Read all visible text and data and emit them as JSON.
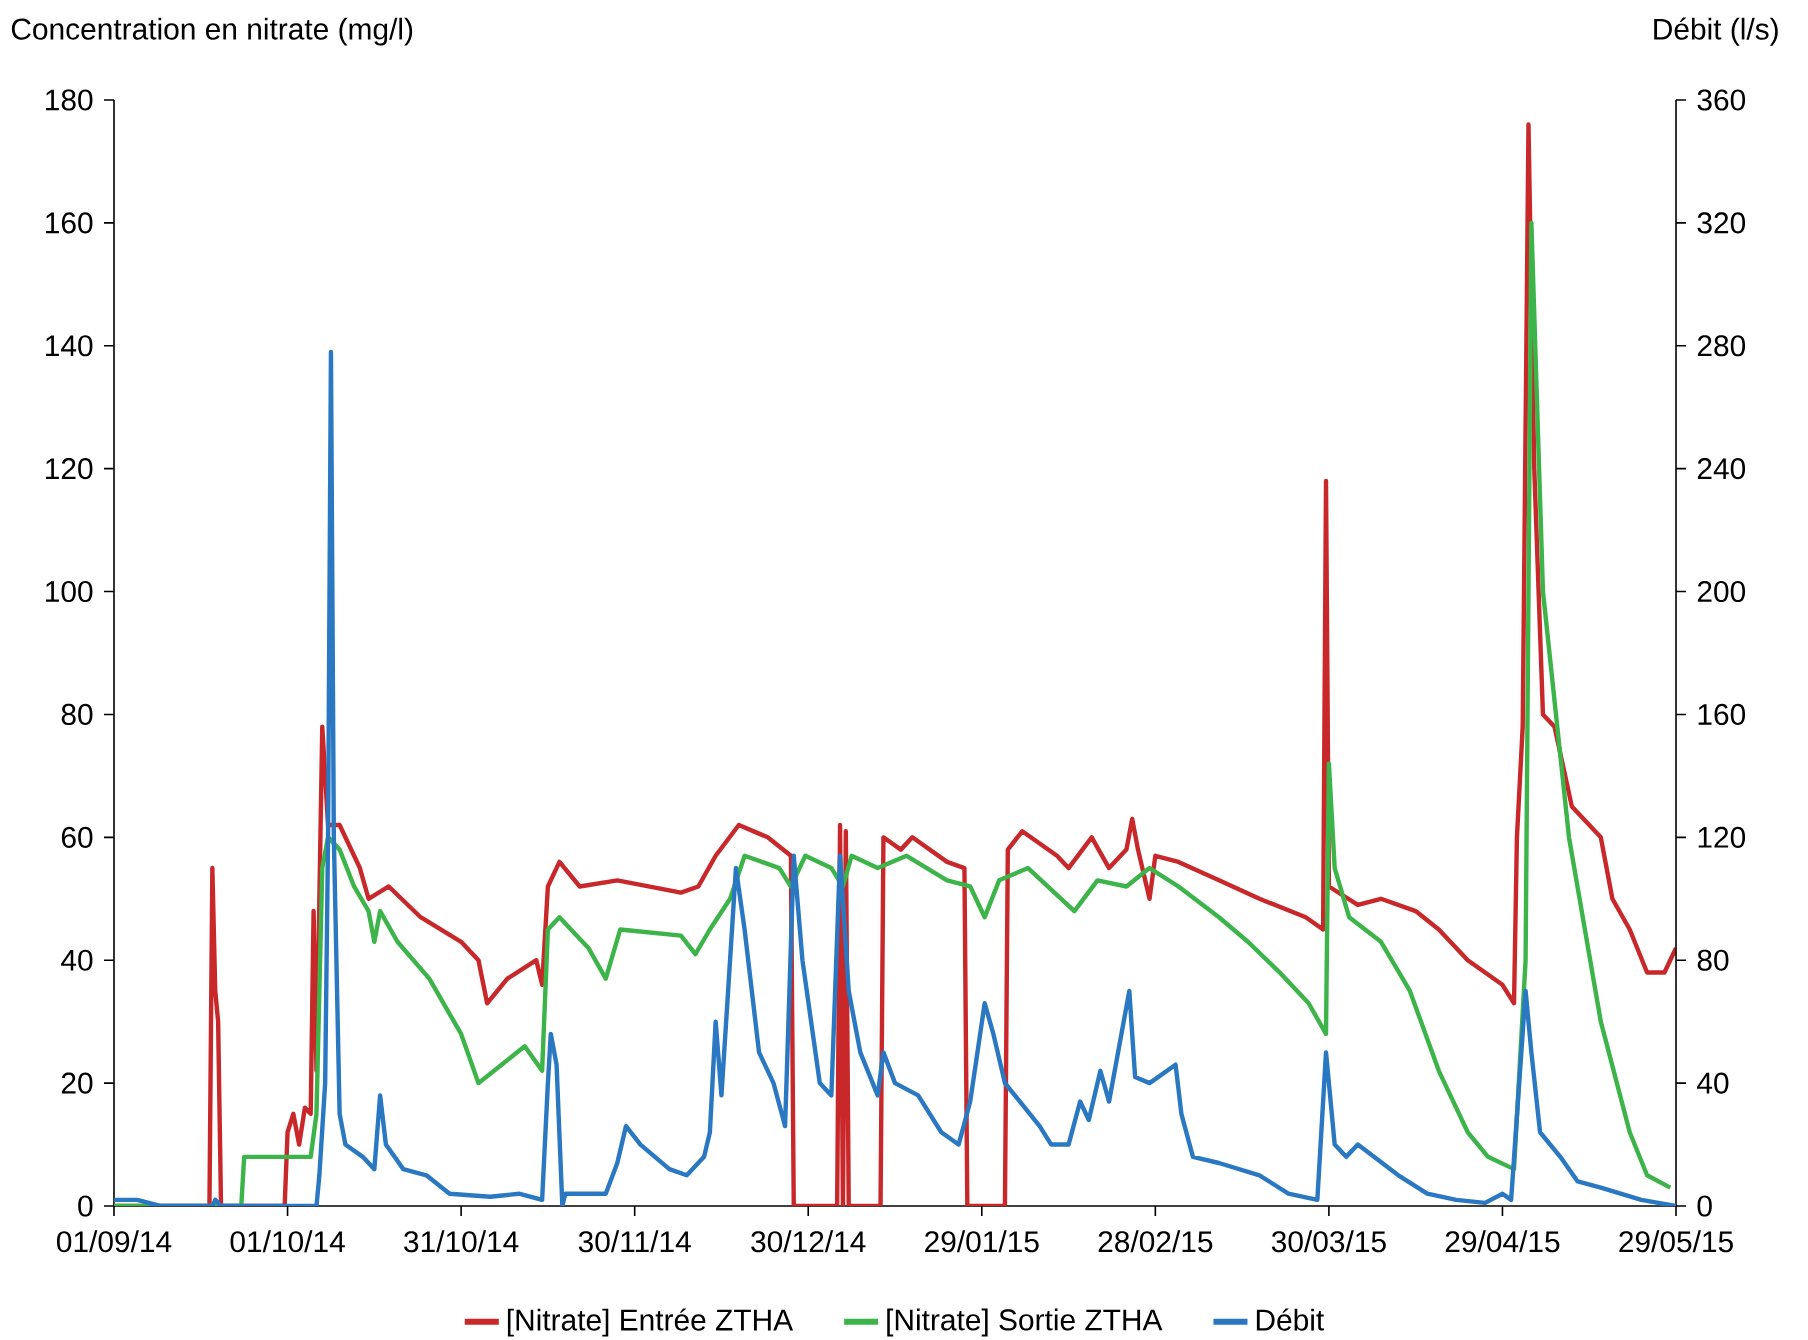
{
  "chart_data": {
    "type": "line",
    "ylabel": "Concentration en nitrate (mg/l)",
    "y2label": "Débit (l/s)",
    "xlim": [
      "2014-09-01",
      "2015-05-29"
    ],
    "xticks": [
      {
        "value": "2014-09-01",
        "label": "01/09/14"
      },
      {
        "value": "2014-10-01",
        "label": "01/10/14"
      },
      {
        "value": "2014-10-31",
        "label": "31/10/14"
      },
      {
        "value": "2014-11-30",
        "label": "30/11/14"
      },
      {
        "value": "2014-12-30",
        "label": "30/12/14"
      },
      {
        "value": "2015-01-29",
        "label": "29/01/15"
      },
      {
        "value": "2015-02-28",
        "label": "28/02/15"
      },
      {
        "value": "2015-03-30",
        "label": "30/03/15"
      },
      {
        "value": "2015-04-29",
        "label": "29/04/15"
      },
      {
        "value": "2015-05-29",
        "label": "29/05/15"
      }
    ],
    "ylim": [
      0,
      180
    ],
    "yticks": [
      0,
      20,
      40,
      60,
      80,
      100,
      120,
      140,
      160,
      180
    ],
    "y2lim": [
      0,
      360
    ],
    "y2ticks": [
      0,
      40,
      80,
      120,
      160,
      200,
      240,
      280,
      320,
      360
    ],
    "legend": "bottom",
    "series": [
      {
        "name": "[Nitrate] Entrée ZTHA",
        "color": "#c8282a",
        "x": [
          "2014-09-01",
          "2014-09-17T12:00",
          "2014-09-18",
          "2014-09-18T12:00",
          "2014-09-19",
          "2014-09-19T12:00",
          "2014-09-30T12:00",
          "2014-10-01",
          "2014-10-02",
          "2014-10-03",
          "2014-10-04",
          "2014-10-05",
          "2014-10-05T12:00",
          "2014-10-06",
          "2014-10-07",
          "2014-10-08",
          "2014-10-10",
          "2014-10-13T12:00",
          "2014-10-15",
          "2014-10-18T12:00",
          "2014-10-24",
          "2014-10-31",
          "2014-11-03",
          "2014-11-04T12:00",
          "2014-11-08",
          "2014-11-13",
          "2014-11-14",
          "2014-11-15",
          "2014-11-17",
          "2014-11-20T12:00",
          "2014-11-27",
          "2014-12-08",
          "2014-12-11",
          "2014-12-14",
          "2014-12-18",
          "2014-12-23",
          "2014-12-27",
          "2014-12-27T12:00",
          "2015-01-04",
          "2015-01-04T12:00",
          "2015-01-05",
          "2015-01-05T12:00",
          "2015-01-06",
          "2015-01-11T12:00",
          "2015-01-12",
          "2015-01-15",
          "2015-01-17",
          "2015-01-23",
          "2015-01-26",
          "2015-01-26T12:00",
          "2015-02-02",
          "2015-02-02T12:00",
          "2015-02-05",
          "2015-02-11",
          "2015-02-13",
          "2015-02-17",
          "2015-02-20",
          "2015-02-23",
          "2015-02-24",
          "2015-02-25",
          "2015-02-27",
          "2015-02-28",
          "2015-03-04",
          "2015-03-11",
          "2015-03-18",
          "2015-03-26",
          "2015-03-29",
          "2015-03-29T12:00",
          "2015-03-30",
          "2015-04-04",
          "2015-04-08",
          "2015-04-14",
          "2015-04-18",
          "2015-04-23",
          "2015-04-29",
          "2015-05-01",
          "2015-05-01T12:00",
          "2015-05-02T12:00",
          "2015-05-03T12:00",
          "2015-05-04T12:00",
          "2015-05-06",
          "2015-05-08",
          "2015-05-11",
          "2015-05-16",
          "2015-05-18",
          "2015-05-21",
          "2015-05-24",
          "2015-05-27",
          "2015-05-29"
        ],
        "values": [
          0,
          0,
          55,
          35,
          30,
          0,
          0,
          12,
          15,
          10,
          16,
          15,
          48,
          22,
          78,
          62,
          62,
          55,
          50,
          52,
          47,
          43,
          40,
          33,
          37,
          40,
          36,
          52,
          56,
          52,
          53,
          51,
          52,
          57,
          62,
          60,
          57,
          0,
          0,
          62,
          0,
          61,
          0,
          0,
          60,
          58,
          60,
          56,
          55,
          0,
          0,
          58,
          61,
          57,
          55,
          60,
          55,
          58,
          63,
          58,
          50,
          57,
          56,
          53,
          50,
          47,
          45,
          118,
          52,
          49,
          50,
          48,
          45,
          40,
          36,
          33,
          60,
          78,
          176,
          120,
          80,
          78,
          65,
          60,
          50,
          45,
          38,
          38,
          42
        ]
      },
      {
        "name": "[Nitrate] Sortie ZTHA",
        "color": "#3cb44a",
        "x": [
          "2014-09-01",
          "2014-09-23",
          "2014-09-23T12:00",
          "2014-10-05",
          "2014-10-06",
          "2014-10-07",
          "2014-10-08",
          "2014-10-10",
          "2014-10-12T12:00",
          "2014-10-15",
          "2014-10-16",
          "2014-10-17",
          "2014-10-20",
          "2014-10-25T12:00",
          "2014-10-31",
          "2014-11-03",
          "2014-11-07",
          "2014-11-11",
          "2014-11-14",
          "2014-11-15",
          "2014-11-17",
          "2014-11-22",
          "2014-11-25",
          "2014-11-27T12:00",
          "2014-12-08",
          "2014-12-10T12:00",
          "2014-12-13",
          "2014-12-16T12:00",
          "2014-12-19",
          "2014-12-25",
          "2014-12-27",
          "2014-12-29T12:00",
          "2015-01-03",
          "2015-01-05",
          "2015-01-06T12:00",
          "2015-01-11",
          "2015-01-16",
          "2015-01-23",
          "2015-01-27",
          "2015-01-29T12:00",
          "2015-02-01",
          "2015-02-06",
          "2015-02-14",
          "2015-02-18",
          "2015-02-23",
          "2015-02-27",
          "2015-03-04",
          "2015-03-11",
          "2015-03-16",
          "2015-03-21T12:00",
          "2015-03-26T12:00",
          "2015-03-29T12:00",
          "2015-03-30",
          "2015-03-31",
          "2015-04-02T12:00",
          "2015-04-08",
          "2015-04-13",
          "2015-04-18",
          "2015-04-23",
          "2015-04-26T12:00",
          "2015-05-01",
          "2015-05-03",
          "2015-05-04",
          "2015-05-06",
          "2015-05-10T12:00",
          "2015-05-16",
          "2015-05-21",
          "2015-05-24",
          "2015-05-28"
        ],
        "values": [
          0,
          0,
          8,
          8,
          15,
          55,
          60,
          58,
          52,
          48,
          43,
          48,
          43,
          37,
          28,
          20,
          23,
          26,
          22,
          45,
          47,
          42,
          37,
          45,
          44,
          41,
          45,
          50,
          57,
          55,
          52,
          57,
          55,
          52,
          57,
          55,
          57,
          53,
          52,
          47,
          53,
          55,
          48,
          53,
          52,
          55,
          52,
          47,
          43,
          38,
          33,
          28,
          72,
          55,
          47,
          43,
          35,
          22,
          12,
          8,
          6,
          40,
          160,
          100,
          60,
          30,
          12,
          5,
          3
        ]
      },
      {
        "name": "Débit",
        "color": "#2a78c2",
        "axis": "y2",
        "x": [
          "2014-09-01",
          "2014-09-05",
          "2014-09-09",
          "2014-09-18",
          "2014-09-18T12:00",
          "2014-09-19T12:00",
          "2014-10-06",
          "2014-10-06T12:00",
          "2014-10-07T12:00",
          "2014-10-08",
          "2014-10-08T12:00",
          "2014-10-09",
          "2014-10-10",
          "2014-10-11",
          "2014-10-14",
          "2014-10-16",
          "2014-10-17",
          "2014-10-18",
          "2014-10-21",
          "2014-10-25",
          "2014-10-29",
          "2014-11-05",
          "2014-11-10",
          "2014-11-14",
          "2014-11-15",
          "2014-11-15T12:00",
          "2014-11-16T12:00",
          "2014-11-17T12:00",
          "2014-11-18",
          "2014-11-25",
          "2014-11-27",
          "2014-11-28T12:00",
          "2014-12-01",
          "2014-12-06",
          "2014-12-09",
          "2014-12-12",
          "2014-12-13",
          "2014-12-14",
          "2014-12-15",
          "2014-12-17T12:00",
          "2014-12-19",
          "2014-12-21T12:00",
          "2014-12-24",
          "2014-12-26",
          "2014-12-27T12:00",
          "2014-12-29",
          "2015-01-01",
          "2015-01-03",
          "2015-01-04T12:00",
          "2015-01-06",
          "2015-01-08",
          "2015-01-11",
          "2015-01-12",
          "2015-01-14",
          "2015-01-18",
          "2015-01-22",
          "2015-01-25",
          "2015-01-27",
          "2015-01-29T12:00",
          "2015-01-31",
          "2015-02-02",
          "2015-02-08",
          "2015-02-10",
          "2015-02-13",
          "2015-02-15",
          "2015-02-16T12:00",
          "2015-02-18T12:00",
          "2015-02-20",
          "2015-02-23T12:00",
          "2015-02-24T12:00",
          "2015-02-27",
          "2015-03-03T12:00",
          "2015-03-04T12:00",
          "2015-03-06T12:00",
          "2015-03-11",
          "2015-03-18",
          "2015-03-23",
          "2015-03-28",
          "2015-03-29T12:00",
          "2015-03-31",
          "2015-04-02",
          "2015-04-04",
          "2015-04-11",
          "2015-04-16",
          "2015-04-21",
          "2015-04-26",
          "2015-04-29",
          "2015-04-30T12:00",
          "2015-05-03",
          "2015-05-04",
          "2015-05-05T12:00",
          "2015-05-09",
          "2015-05-12",
          "2015-05-16",
          "2015-05-23",
          "2015-05-29"
        ],
        "values": [
          2,
          2,
          0,
          0,
          2,
          0,
          0,
          10,
          40,
          120,
          278,
          120,
          30,
          20,
          16,
          12,
          36,
          20,
          12,
          10,
          4,
          3,
          4,
          2,
          40,
          56,
          46,
          0,
          4,
          4,
          14,
          26,
          20,
          12,
          10,
          16,
          24,
          60,
          36,
          110,
          90,
          50,
          40,
          26,
          114,
          80,
          40,
          36,
          114,
          70,
          50,
          36,
          50,
          40,
          36,
          24,
          20,
          34,
          66,
          56,
          40,
          26,
          20,
          20,
          34,
          28,
          44,
          34,
          70,
          42,
          40,
          46,
          30,
          16,
          14,
          10,
          4,
          2,
          50,
          20,
          16,
          20,
          10,
          4,
          2,
          1,
          4,
          2,
          70,
          50,
          24,
          16,
          8,
          6,
          2,
          0
        ]
      }
    ]
  }
}
